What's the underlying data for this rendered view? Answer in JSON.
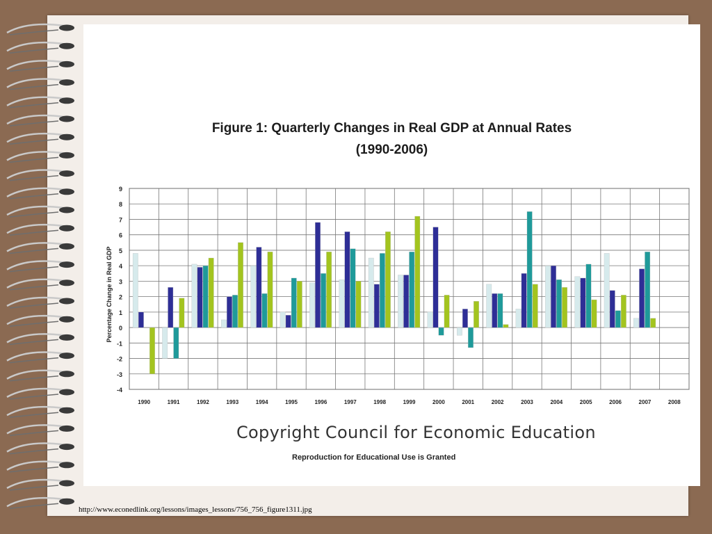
{
  "slide": {
    "copyright": "Copyright Council for Economic Education",
    "reproduction": "Reproduction for Educational Use is Granted",
    "source_url": "http://www.econedlink.org/lessons/images_lessons/756_756_figure1311.jpg"
  },
  "chart_data": {
    "type": "bar",
    "title": "Figure 1: Quarterly Changes in Real GDP at Annual Rates",
    "subtitle": "(1990-2006)",
    "ylabel": "Percentage Change in Real GDP",
    "xlabel": "",
    "ylim": [
      -4,
      9
    ],
    "yticks": [
      9,
      8,
      7,
      6,
      5,
      4,
      3,
      2,
      1,
      0,
      -1,
      -2,
      -3,
      -4
    ],
    "grid": true,
    "categories": [
      "1990",
      "1991",
      "1992",
      "1993",
      "1994",
      "1995",
      "1996",
      "1997",
      "1998",
      "1999",
      "2000",
      "2001",
      "2002",
      "2003",
      "2004",
      "2005",
      "2006",
      "2007",
      "2008"
    ],
    "series": [
      {
        "color": "#d6eaec",
        "values": [
          4.8,
          -2.0,
          4.1,
          0.5,
          4.0,
          1.0,
          2.9,
          3.1,
          4.5,
          3.4,
          1.0,
          -0.5,
          2.8,
          1.2,
          4.0,
          3.3,
          4.8,
          0.6,
          null
        ]
      },
      {
        "color": "#2e2e96",
        "values": [
          1.0,
          2.6,
          3.9,
          2.0,
          5.2,
          0.8,
          6.8,
          6.2,
          2.8,
          3.4,
          6.5,
          1.2,
          2.2,
          3.5,
          4.0,
          3.2,
          2.4,
          3.8,
          null
        ]
      },
      {
        "color": "#1f9a9a",
        "values": [
          null,
          -2.0,
          4.0,
          2.1,
          2.2,
          3.2,
          3.5,
          5.1,
          4.8,
          4.9,
          -0.5,
          -1.3,
          2.2,
          7.5,
          3.1,
          4.1,
          1.1,
          4.9,
          null
        ]
      },
      {
        "color": "#a3c41f",
        "values": [
          -3.0,
          1.9,
          4.5,
          5.5,
          4.9,
          3.0,
          4.9,
          3.0,
          6.2,
          7.2,
          2.1,
          1.7,
          0.2,
          2.8,
          2.6,
          1.8,
          2.1,
          0.6,
          null
        ]
      }
    ]
  }
}
